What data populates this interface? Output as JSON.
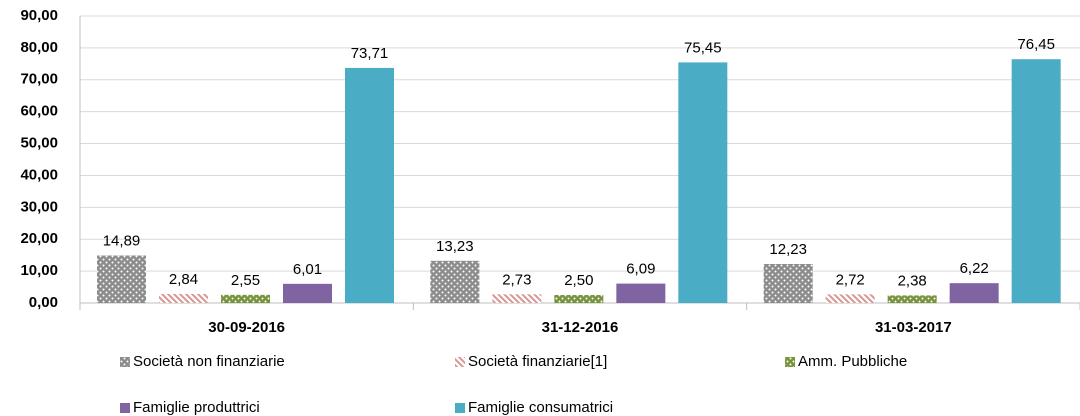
{
  "chart_data": {
    "type": "bar",
    "categories": [
      "30-09-2016",
      "31-12-2016",
      "31-03-2017"
    ],
    "series": [
      {
        "name": "Società non finanziarie",
        "color": "#8c8c8c",
        "pattern": "dots",
        "values": [
          14.89,
          13.23,
          12.23
        ],
        "value_labels": [
          "14,89",
          "13,23",
          "12,23"
        ]
      },
      {
        "name": "Società finanziarie[1]",
        "color": "#d99694",
        "pattern": "hatch",
        "values": [
          2.84,
          2.73,
          2.72
        ],
        "value_labels": [
          "2,84",
          "2,73",
          "2,72"
        ]
      },
      {
        "name": "Amm. Pubbliche",
        "color": "#77933c",
        "pattern": "dots",
        "values": [
          2.55,
          2.5,
          2.38
        ],
        "value_labels": [
          "2,55",
          "2,50",
          "2,38"
        ]
      },
      {
        "name": "Famiglie produttrici",
        "color": "#8064a2",
        "pattern": "solid",
        "values": [
          6.01,
          6.09,
          6.22
        ],
        "value_labels": [
          "6,01",
          "6,09",
          "6,22"
        ]
      },
      {
        "name": "Famiglie consumatrici",
        "color": "#4bacc6",
        "pattern": "solid",
        "values": [
          73.71,
          75.45,
          76.45
        ],
        "value_labels": [
          "73,71",
          "75,45",
          "76,45"
        ]
      }
    ],
    "ylim": [
      0,
      90
    ],
    "yticks": [
      {
        "value": 0,
        "label": "0,00"
      },
      {
        "value": 10,
        "label": "10,00"
      },
      {
        "value": 20,
        "label": "20,00"
      },
      {
        "value": 30,
        "label": "30,00"
      },
      {
        "value": 40,
        "label": "40,00"
      },
      {
        "value": 50,
        "label": "50,00"
      },
      {
        "value": 60,
        "label": "60,00"
      },
      {
        "value": 70,
        "label": "70,00"
      },
      {
        "value": 80,
        "label": "80,00"
      },
      {
        "value": 90,
        "label": "90,00"
      }
    ],
    "grid": true,
    "legend": "bottom"
  }
}
